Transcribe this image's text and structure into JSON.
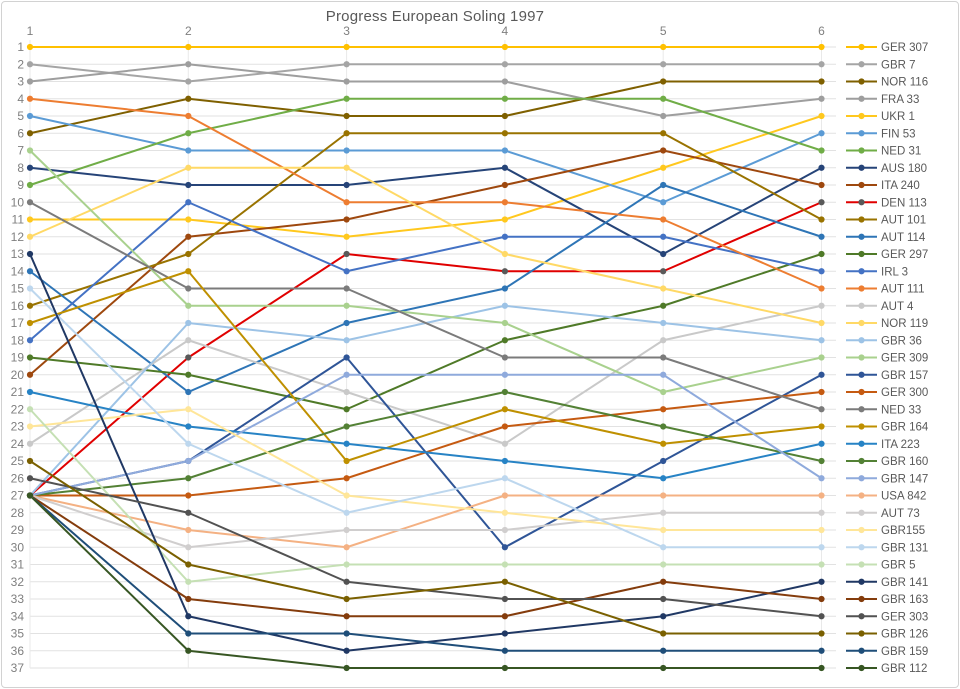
{
  "title": "Progress European Soling 1997",
  "chart_data": {
    "type": "line",
    "subtype": "bump-chart-ranking",
    "x_ticks": [
      1,
      2,
      3,
      4,
      5,
      6
    ],
    "y_ticks": [
      1,
      2,
      3,
      4,
      5,
      6,
      7,
      8,
      9,
      10,
      11,
      12,
      13,
      14,
      15,
      16,
      17,
      18,
      19,
      20,
      21,
      22,
      23,
      24,
      25,
      26,
      27,
      28,
      29,
      30,
      31,
      32,
      33,
      34,
      35,
      36,
      37
    ],
    "xlabel": "",
    "ylabel": "",
    "ylim": [
      1,
      37
    ],
    "y_inverted": true,
    "grid": true,
    "legend_position": "right",
    "gridline_color": "#e2e2e2",
    "axis_text_color": "#7f7f7f",
    "title_color": "#595959",
    "series": [
      {
        "name": "GER 307",
        "color": "#FFC000",
        "ranks": [
          1,
          1,
          1,
          1,
          1,
          1
        ]
      },
      {
        "name": "GBR 7",
        "color": "#A5A5A5",
        "ranks": [
          2,
          3,
          2,
          2,
          2,
          2
        ]
      },
      {
        "name": "NOR 116",
        "color": "#7F6000",
        "ranks": [
          6,
          4,
          5,
          5,
          3,
          3
        ]
      },
      {
        "name": "FRA 33",
        "color": "#9E9E9E",
        "ranks": [
          3,
          2,
          3,
          3,
          5,
          4
        ]
      },
      {
        "name": "UKR 1",
        "color": "#FFC81E",
        "ranks": [
          11,
          11,
          12,
          11,
          8,
          5
        ]
      },
      {
        "name": "FIN 53",
        "color": "#5B9BD5",
        "ranks": [
          5,
          7,
          7,
          7,
          10,
          6
        ]
      },
      {
        "name": "NED 31",
        "color": "#70AD47",
        "ranks": [
          9,
          6,
          4,
          4,
          4,
          7
        ]
      },
      {
        "name": "AUS 180",
        "color": "#264478",
        "ranks": [
          8,
          9,
          9,
          8,
          13,
          8
        ]
      },
      {
        "name": "ITA 240",
        "color": "#9E480E",
        "ranks": [
          20,
          12,
          11,
          9,
          7,
          9
        ]
      },
      {
        "name": "DEN 113",
        "color": "#E00000",
        "marker": "#595959",
        "ranks": [
          27,
          19,
          13,
          14,
          14,
          10
        ]
      },
      {
        "name": "AUT 101",
        "color": "#997300",
        "ranks": [
          16,
          13,
          6,
          6,
          6,
          11
        ]
      },
      {
        "name": "AUT 114",
        "color": "#2E75B6",
        "ranks": [
          14,
          21,
          17,
          15,
          9,
          12
        ]
      },
      {
        "name": "GER 297",
        "color": "#4F7A28",
        "ranks": [
          19,
          20,
          22,
          18,
          16,
          13
        ]
      },
      {
        "name": "IRL 3",
        "color": "#4472C4",
        "ranks": [
          18,
          10,
          14,
          12,
          12,
          14
        ]
      },
      {
        "name": "AUT 111",
        "color": "#ED7D31",
        "ranks": [
          4,
          5,
          10,
          10,
          11,
          15
        ]
      },
      {
        "name": "AUT 4",
        "color": "#C9C9C9",
        "ranks": [
          24,
          18,
          21,
          24,
          18,
          16
        ]
      },
      {
        "name": "NOR 119",
        "color": "#FFD966",
        "ranks": [
          12,
          8,
          8,
          13,
          15,
          17
        ]
      },
      {
        "name": "GBR 36",
        "color": "#9DC3E6",
        "ranks": [
          27,
          17,
          18,
          16,
          17,
          18
        ]
      },
      {
        "name": "GER 309",
        "color": "#A9D18E",
        "ranks": [
          7,
          16,
          16,
          17,
          21,
          19
        ]
      },
      {
        "name": "GBR 157",
        "color": "#2F5597",
        "ranks": [
          27,
          25,
          19,
          30,
          25,
          20
        ]
      },
      {
        "name": "GER 300",
        "color": "#C55A11",
        "ranks": [
          27,
          27,
          26,
          23,
          22,
          21
        ]
      },
      {
        "name": "NED 33",
        "color": "#7B7B7B",
        "ranks": [
          10,
          15,
          15,
          19,
          19,
          22
        ]
      },
      {
        "name": "GBR 164",
        "color": "#BF9000",
        "ranks": [
          17,
          14,
          25,
          22,
          24,
          23
        ]
      },
      {
        "name": "ITA 223",
        "color": "#2783C5",
        "ranks": [
          21,
          23,
          24,
          25,
          26,
          24
        ]
      },
      {
        "name": "GBR 160",
        "color": "#538135",
        "ranks": [
          27,
          26,
          23,
          21,
          23,
          25
        ]
      },
      {
        "name": "GBR 147",
        "color": "#8FAADC",
        "ranks": [
          27,
          25,
          20,
          20,
          20,
          26
        ]
      },
      {
        "name": "USA 842",
        "color": "#F4B183",
        "ranks": [
          27,
          29,
          30,
          27,
          27,
          27
        ]
      },
      {
        "name": "AUT 73",
        "color": "#D0CECE",
        "ranks": [
          27,
          30,
          29,
          29,
          28,
          28
        ]
      },
      {
        "name": "GBR155",
        "color": "#FFE699",
        "ranks": [
          23,
          22,
          27,
          28,
          29,
          29
        ]
      },
      {
        "name": "GBR 131",
        "color": "#BDD7EE",
        "ranks": [
          15,
          24,
          28,
          26,
          30,
          30
        ]
      },
      {
        "name": "GBR 5",
        "color": "#C5E0B4",
        "ranks": [
          22,
          32,
          31,
          31,
          31,
          31
        ]
      },
      {
        "name": "GBR 141",
        "color": "#203864",
        "ranks": [
          13,
          34,
          36,
          35,
          34,
          32
        ]
      },
      {
        "name": "GBR 163",
        "color": "#843C0C",
        "ranks": [
          27,
          33,
          34,
          34,
          32,
          33
        ]
      },
      {
        "name": "GER 303",
        "color": "#525252",
        "ranks": [
          26,
          28,
          32,
          33,
          33,
          34
        ]
      },
      {
        "name": "GBR 126",
        "color": "#7A6000",
        "ranks": [
          25,
          31,
          33,
          32,
          35,
          35
        ]
      },
      {
        "name": "GBR 159",
        "color": "#1F4E79",
        "ranks": [
          27,
          35,
          35,
          36,
          36,
          36
        ]
      },
      {
        "name": "GBR 112",
        "color": "#375623",
        "ranks": [
          27,
          36,
          37,
          37,
          37,
          37
        ]
      }
    ]
  }
}
